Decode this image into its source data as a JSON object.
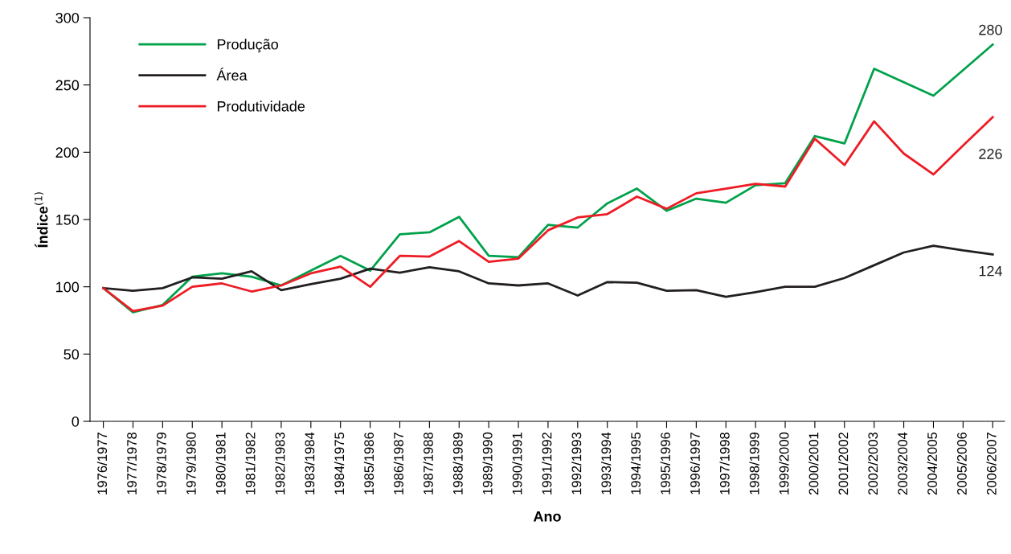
{
  "chart_data": {
    "type": "line",
    "xlabel": "Ano",
    "ylabel": "Índice$^{(1)}$",
    "categories": [
      "1976/1977",
      "1977/1978",
      "1978/1979",
      "1979/1980",
      "1980/1981",
      "1981/1982",
      "1982/1983",
      "1983/1984",
      "1984/1975",
      "1985/1986",
      "1986/1987",
      "1987/1988",
      "1988/1989",
      "1989/1990",
      "1990/1991",
      "1991/1992",
      "1992/1993",
      "1993/1994",
      "1994/1995",
      "1995/1996",
      "1996/1997",
      "1997/1998",
      "1998/1999",
      "1999/2000",
      "2000/2001",
      "2001/2002",
      "2002/2003",
      "2003/2004",
      "2004/2005",
      "2005/2006",
      "2006/2007"
    ],
    "series": [
      {
        "name": "Produção",
        "color": "#00a14b",
        "values": [
          99,
          81,
          86.5,
          107.5,
          110,
          107.5,
          101,
          112,
          123,
          112,
          139,
          140.5,
          152,
          123,
          122,
          146,
          144,
          162,
          173,
          156.5,
          165.5,
          162.5,
          175.5,
          177,
          212,
          206.5,
          262,
          252,
          242,
          261,
          280
        ],
        "value_labels": [
          null,
          null,
          null,
          null,
          null,
          null,
          null,
          null,
          null,
          null,
          null,
          null,
          null,
          null,
          null,
          null,
          null,
          null,
          null,
          null,
          null,
          null,
          null,
          null,
          null,
          null,
          null,
          null,
          null,
          null,
          "280"
        ]
      },
      {
        "name": "Área",
        "color": "#231f20",
        "values": [
          99,
          97,
          99,
          107,
          106,
          111.5,
          97.5,
          102,
          106,
          113.5,
          110.5,
          114.5,
          111.5,
          102.5,
          101,
          102.5,
          93.5,
          103.5,
          103,
          97,
          97.5,
          92.5,
          96,
          100,
          100,
          106.5,
          116,
          125.5,
          130.5,
          127,
          124
        ],
        "value_labels": [
          null,
          null,
          null,
          null,
          null,
          null,
          null,
          null,
          null,
          null,
          null,
          null,
          null,
          null,
          null,
          null,
          null,
          null,
          null,
          null,
          null,
          null,
          null,
          null,
          null,
          null,
          null,
          null,
          null,
          null,
          "124"
        ]
      },
      {
        "name": "Produtividade",
        "color": "#ed1c24",
        "values": [
          99,
          82,
          86,
          100,
          102.5,
          96.5,
          101,
          110,
          115,
          100,
          123,
          122.5,
          134,
          118.5,
          121,
          142,
          151.5,
          154,
          167,
          158,
          169.5,
          173,
          176.5,
          174.5,
          210,
          190.5,
          223,
          199,
          183.5,
          205,
          226
        ],
        "value_labels": [
          null,
          null,
          null,
          null,
          null,
          null,
          null,
          null,
          null,
          null,
          null,
          null,
          null,
          null,
          null,
          null,
          null,
          null,
          null,
          null,
          null,
          null,
          null,
          null,
          null,
          null,
          null,
          null,
          null,
          null,
          "226"
        ]
      }
    ],
    "ylim": [
      0,
      300
    ],
    "yticks": [
      0,
      50,
      100,
      150,
      200,
      250,
      300
    ],
    "grid": false,
    "legend": "top left",
    "marker": "none",
    "line_style": "solid"
  }
}
